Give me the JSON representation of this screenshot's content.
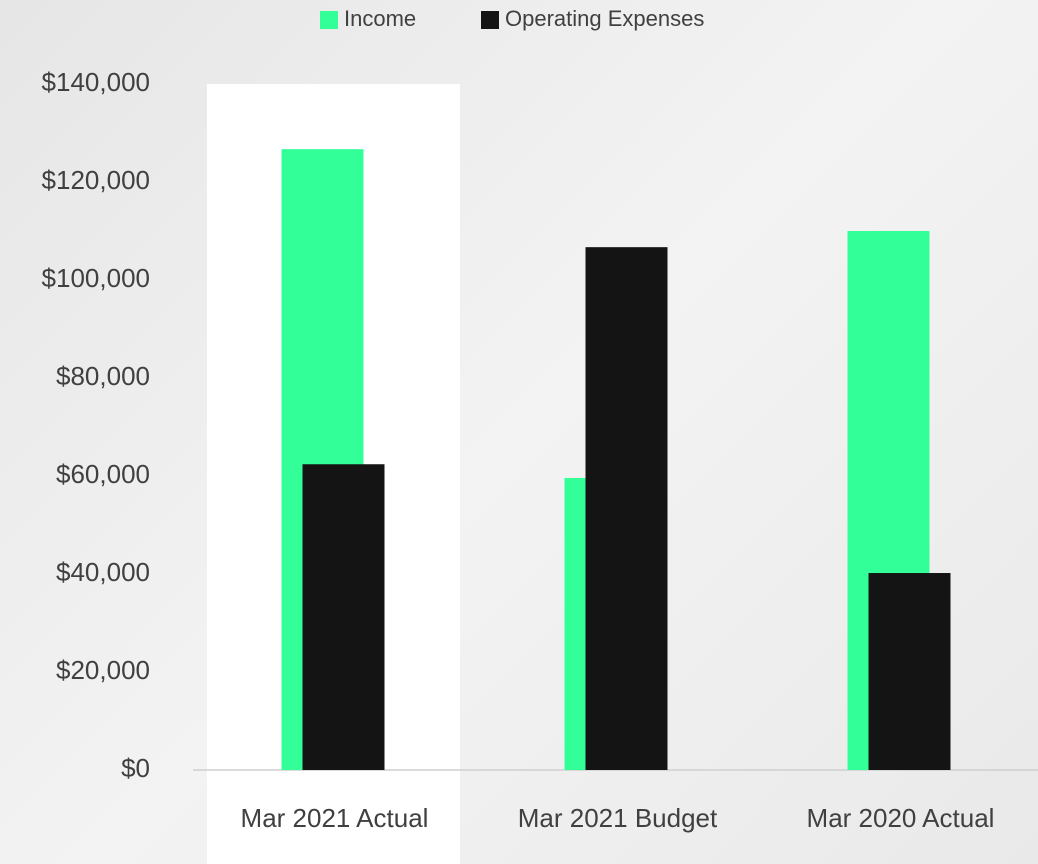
{
  "chart_data": {
    "type": "bar",
    "categories": [
      "Mar 2021 Actual",
      "Mar 2021 Budget",
      "Mar 2020 Actual"
    ],
    "series": [
      {
        "name": "Income",
        "color": "#33ff99",
        "values": [
          126700,
          59600,
          110000
        ]
      },
      {
        "name": "Operating Expenses",
        "color": "#141414",
        "values": [
          62400,
          106700,
          40200
        ]
      }
    ],
    "ylim": [
      0,
      140000
    ],
    "yticks": [
      {
        "value": 0,
        "label": "$0"
      },
      {
        "value": 20000,
        "label": "$20,000"
      },
      {
        "value": 40000,
        "label": "$40,000"
      },
      {
        "value": 60000,
        "label": "$60,000"
      },
      {
        "value": 80000,
        "label": "$80,000"
      },
      {
        "value": 100000,
        "label": "$100,000"
      },
      {
        "value": 120000,
        "label": "$120,000"
      },
      {
        "value": 140000,
        "label": "$140,000"
      }
    ],
    "legend": "top"
  }
}
